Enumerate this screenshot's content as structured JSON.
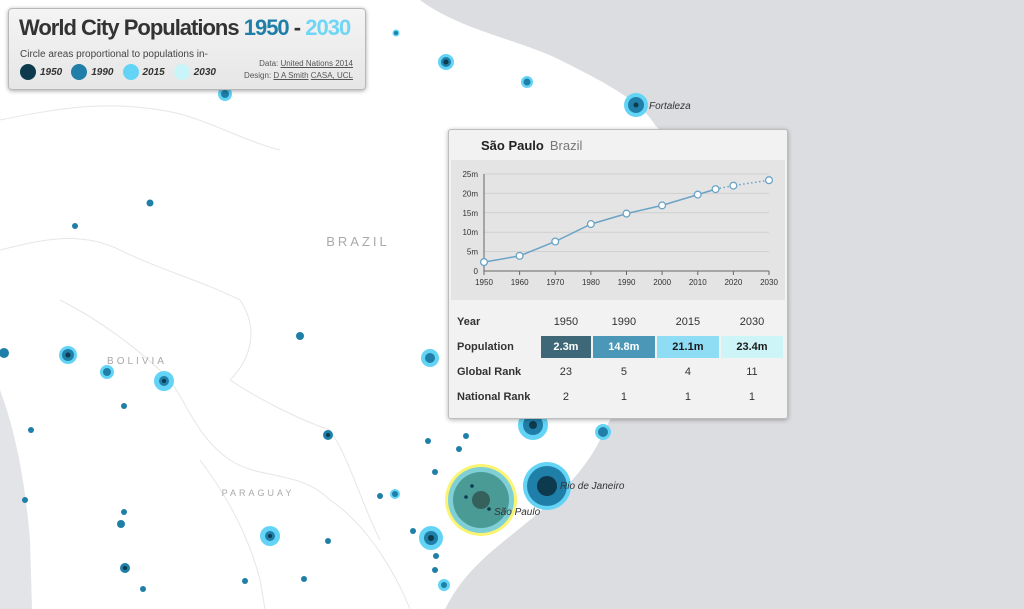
{
  "map": {
    "country_labels": [
      {
        "name": "BRAZIL",
        "x": 358,
        "y": 246,
        "size": 13
      },
      {
        "name": "BOLIVIA",
        "x": 137,
        "y": 364,
        "size": 10
      },
      {
        "name": "PARAGUAY",
        "x": 258,
        "y": 496,
        "size": 9
      }
    ],
    "city_labels": [
      {
        "name": "Fortaleza",
        "x": 649,
        "y": 109
      },
      {
        "name": "Rio de Janeiro",
        "x": 560,
        "y": 489
      },
      {
        "name": "São Paulo",
        "x": 494,
        "y": 515
      }
    ]
  },
  "legend": {
    "title": "World City Populations",
    "year_start": "1950",
    "dash": "-",
    "year_end": "2030",
    "subtitle": "Circle areas proportional to populations in-",
    "keys": [
      {
        "label": "1950",
        "color": "#0d3a4d"
      },
      {
        "label": "1990",
        "color": "#1f7fa8"
      },
      {
        "label": "2015",
        "color": "#63d4f5"
      },
      {
        "label": "2030",
        "color": "#c9f5f8"
      }
    ],
    "data_prefix": "Data:",
    "data_source": "United Nations 2014",
    "design_prefix": "Design:",
    "designer": "D A Smith",
    "org": "CASA, UCL"
  },
  "popup": {
    "city": "São Paulo",
    "country": "Brazil",
    "table": {
      "year_header": "Year",
      "years": [
        "1950",
        "1990",
        "2015",
        "2030"
      ],
      "population_header": "Population",
      "populations": [
        "2.3m",
        "14.8m",
        "21.1m",
        "23.4m"
      ],
      "population_colors": [
        "#3e6878",
        "#4a97b8",
        "#8fdcf5",
        "#cdf4f6"
      ],
      "population_text_colors": [
        "#ffffff",
        "#ffffff",
        "#1a1a1a",
        "#1a1a1a"
      ],
      "global_rank_header": "Global Rank",
      "global_ranks": [
        "23",
        "5",
        "4",
        "11"
      ],
      "national_rank_header": "National Rank",
      "national_ranks": [
        "2",
        "1",
        "1",
        "1"
      ]
    }
  },
  "chart_data": {
    "type": "line",
    "title": "",
    "xlabel": "",
    "ylabel": "",
    "x_ticks": [
      1950,
      1960,
      1970,
      1980,
      1990,
      2000,
      2010,
      2020,
      2030
    ],
    "y_ticks": [
      0,
      5,
      10,
      15,
      20,
      25
    ],
    "y_tick_labels": [
      "0",
      "5m",
      "10m",
      "15m",
      "20m",
      "25m"
    ],
    "xlim": [
      1950,
      2030
    ],
    "ylim": [
      0,
      25
    ],
    "grid": true,
    "series": [
      {
        "points": [
          [
            1950,
            2.3
          ],
          [
            1960,
            3.9
          ],
          [
            1970,
            7.6
          ],
          [
            1980,
            12.1
          ],
          [
            1990,
            14.8
          ],
          [
            2000,
            16.9
          ],
          [
            2010,
            19.7
          ],
          [
            2015,
            21.1
          ]
        ],
        "style": "solid"
      },
      {
        "points": [
          [
            2015,
            21.1
          ],
          [
            2020,
            22.0
          ],
          [
            2030,
            23.4
          ]
        ],
        "style": "dotted"
      }
    ]
  }
}
